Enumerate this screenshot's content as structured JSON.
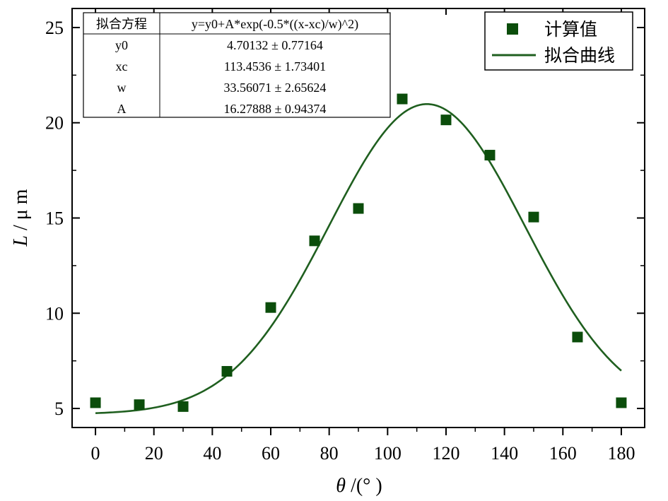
{
  "chart_data": {
    "type": "scatter",
    "xlabel_symbol": "θ",
    "xlabel_unit": " /(°  )",
    "ylabel_symbol": "L",
    "ylabel_unit": " / μ m",
    "xlim": [
      -8,
      188
    ],
    "ylim": [
      4,
      26
    ],
    "xticks": [
      0,
      20,
      40,
      60,
      80,
      100,
      120,
      140,
      160,
      180
    ],
    "yticks": [
      5,
      10,
      15,
      20,
      25
    ],
    "grid": false,
    "legend_position": "top-right",
    "colors": {
      "points": "#0b4d0b",
      "curve": "#1f5f1f",
      "axis": "#000000"
    },
    "series": [
      {
        "name": "计算值",
        "kind": "scatter",
        "x": [
          0,
          15,
          30,
          45,
          60,
          75,
          90,
          105,
          120,
          135,
          150,
          165,
          180
        ],
        "y": [
          5.3,
          5.2,
          5.1,
          6.95,
          10.3,
          13.8,
          15.5,
          21.25,
          20.15,
          18.3,
          15.05,
          8.75,
          5.3
        ]
      },
      {
        "name": "拟合曲线",
        "kind": "line",
        "formula": "y=y0+A*exp(-0.5*((x-xc)/w)^2)",
        "params": {
          "y0": 4.70132,
          "xc": 113.4536,
          "w": 33.56071,
          "A": 16.27888
        },
        "x_range": [
          0,
          180
        ]
      }
    ],
    "fit_table": {
      "header": [
        "拟合方程",
        "y=y0+A*exp(-0.5*((x-xc)/w)^2)"
      ],
      "rows": [
        [
          "y0",
          "4.70132 ± 0.77164"
        ],
        [
          "xc",
          "113.4536 ± 1.73401"
        ],
        [
          "w",
          "33.56071 ± 2.65624"
        ],
        [
          "A",
          "16.27888 ± 0.94374"
        ]
      ]
    }
  }
}
